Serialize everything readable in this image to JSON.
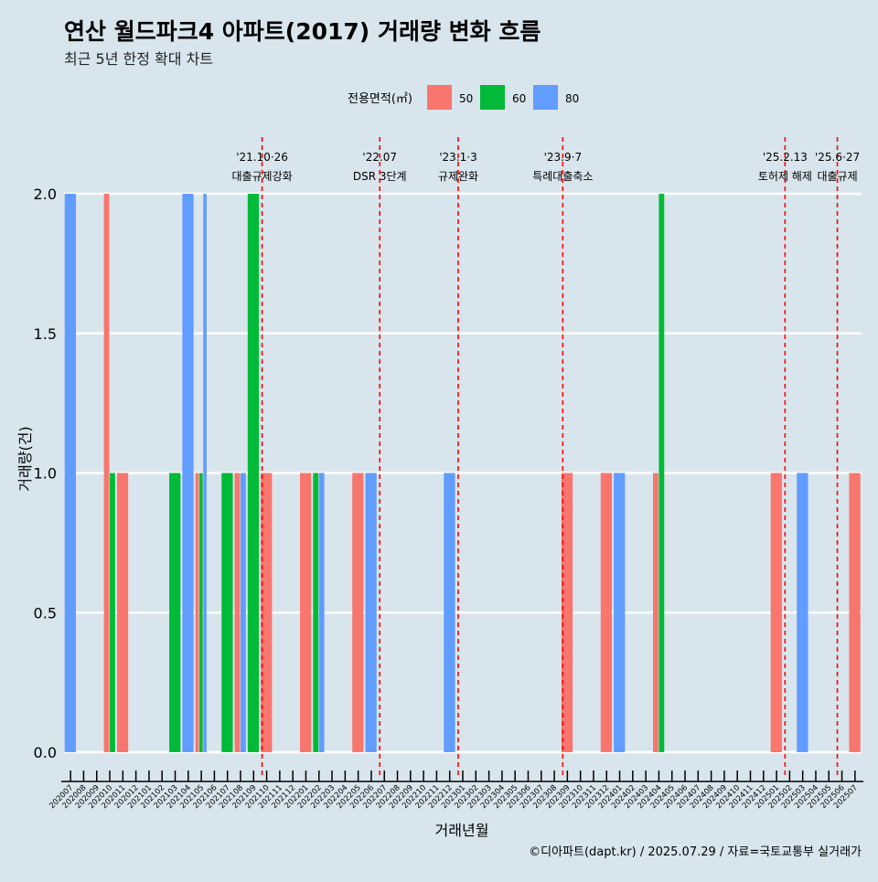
{
  "title": "연산 월드파크4 아파트(2017) 거래량 변화 흐름",
  "subtitle": "최근 5년 한정 확대 차트",
  "caption": "©디아파트(dapt.kr) / 2025.07.29 / 자료=국토교통부 실거래가",
  "colors": {
    "background": "#d8e5ec",
    "s50": "#f8766d",
    "s60": "#00ba38",
    "s80": "#619cff",
    "event_line": "#ff0000",
    "grid": "#ffffff"
  },
  "chart_data": {
    "type": "bar",
    "xlabel": "거래년월",
    "ylabel": "거래량(건)",
    "ylim": [
      0,
      2
    ],
    "yticks": [
      "0.0",
      "0.5",
      "1.0",
      "1.5",
      "2.0"
    ],
    "grid": true,
    "legend": {
      "title": "전용면적(㎡)",
      "position": "top",
      "entries": [
        "50",
        "60",
        "80"
      ]
    },
    "categories": [
      "202007",
      "202008",
      "202009",
      "202010",
      "202011",
      "202012",
      "202101",
      "202102",
      "202103",
      "202104",
      "202105",
      "202106",
      "202107",
      "202108",
      "202109",
      "202110",
      "202111",
      "202112",
      "202201",
      "202202",
      "202203",
      "202204",
      "202205",
      "202206",
      "202207",
      "202208",
      "202209",
      "202210",
      "202211",
      "202212",
      "202301",
      "202302",
      "202303",
      "202304",
      "202305",
      "202306",
      "202307",
      "202308",
      "202309",
      "202310",
      "202311",
      "202312",
      "202401",
      "202402",
      "202403",
      "202404",
      "202405",
      "202406",
      "202407",
      "202408",
      "202409",
      "202410",
      "202411",
      "202412",
      "202501",
      "202502",
      "202503",
      "202504",
      "202505",
      "202506",
      "202507"
    ],
    "series": [
      {
        "name": "50",
        "values": [
          0,
          0,
          0,
          2,
          1,
          0,
          0,
          0,
          0,
          0,
          1,
          0,
          0,
          1,
          0,
          1,
          0,
          0,
          1,
          0,
          0,
          0,
          1,
          0,
          0,
          0,
          0,
          0,
          0,
          0,
          0,
          0,
          0,
          0,
          0,
          0,
          0,
          0,
          1,
          0,
          0,
          1,
          0,
          0,
          0,
          1,
          0,
          0,
          0,
          0,
          0,
          0,
          0,
          0,
          1,
          0,
          0,
          0,
          0,
          0,
          1
        ]
      },
      {
        "name": "60",
        "values": [
          0,
          0,
          0,
          1,
          0,
          0,
          0,
          0,
          1,
          0,
          1,
          0,
          1,
          0,
          2,
          0,
          0,
          0,
          0,
          1,
          0,
          0,
          0,
          0,
          0,
          0,
          0,
          0,
          0,
          0,
          0,
          0,
          0,
          0,
          0,
          0,
          0,
          0,
          0,
          0,
          0,
          0,
          0,
          0,
          0,
          2,
          0,
          0,
          0,
          0,
          0,
          0,
          0,
          0,
          0,
          0,
          0,
          0,
          0,
          0,
          0
        ]
      },
      {
        "name": "80",
        "values": [
          2,
          0,
          0,
          0,
          0,
          0,
          0,
          0,
          0,
          2,
          2,
          0,
          0,
          1,
          0,
          0,
          0,
          0,
          0,
          1,
          0,
          0,
          0,
          1,
          0,
          0,
          0,
          0,
          0,
          1,
          0,
          0,
          0,
          0,
          0,
          0,
          0,
          0,
          0,
          0,
          0,
          0,
          1,
          0,
          0,
          0,
          0,
          0,
          0,
          0,
          0,
          0,
          0,
          0,
          0,
          0,
          1,
          0,
          0,
          0,
          0
        ]
      }
    ],
    "annotations": [
      {
        "at": "202110",
        "date": "'21.10·26",
        "label": "대출규제강화"
      },
      {
        "at": "202207",
        "date": "'22.07",
        "label": "DSR 3단계"
      },
      {
        "at": "202301",
        "date": "'23.1·3",
        "label": "규제완화"
      },
      {
        "at": "202309",
        "date": "'23.9·7",
        "label": "특례대출축소"
      },
      {
        "at": "202502",
        "date": "'25.2.13",
        "label": "토허제 해제"
      },
      {
        "at": "202506",
        "date": "'25.6·27",
        "label": "대출규제"
      }
    ]
  }
}
